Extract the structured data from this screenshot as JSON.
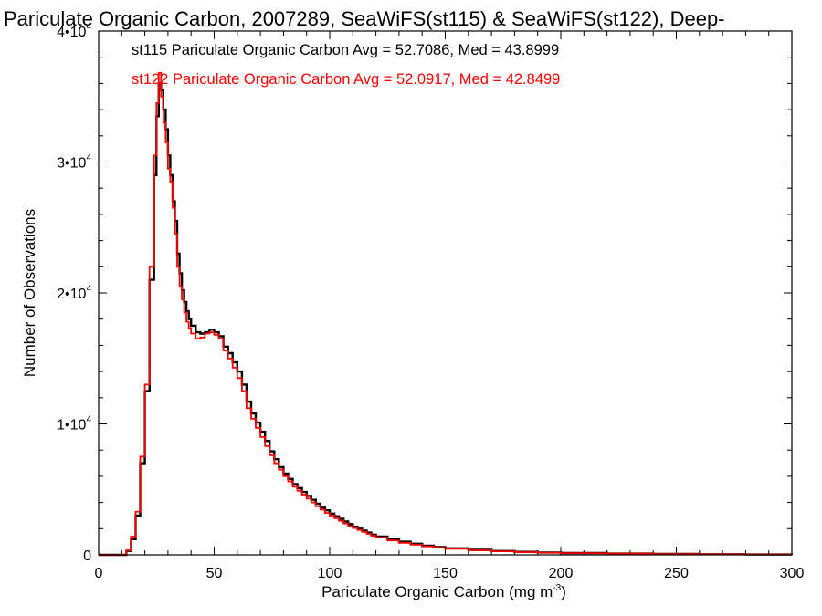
{
  "chart_data": {
    "type": "line",
    "title": "Pariculate Organic Carbon, 2007289, SeaWiFS(st115) & SeaWiFS(st122), Deep-",
    "xlabel": "Pariculate Organic Carbon (mg m",
    "xlabel_exp": "-3",
    "xlabel_close": ")",
    "ylabel": "Number of Observations",
    "xlim": [
      0,
      300
    ],
    "ylim": [
      0,
      40000
    ],
    "grid": false,
    "x_ticks": [
      0,
      50,
      100,
      150,
      200,
      250,
      300
    ],
    "x_tick_labels": [
      "0",
      "50",
      "100",
      "150",
      "200",
      "250",
      "300"
    ],
    "y_ticks": [
      {
        "value": 0,
        "mantissa": "0",
        "exp": ""
      },
      {
        "value": 10000,
        "mantissa": "1•10",
        "exp": "4"
      },
      {
        "value": 20000,
        "mantissa": "2•10",
        "exp": "4"
      },
      {
        "value": 30000,
        "mantissa": "3•10",
        "exp": "4"
      },
      {
        "value": 40000,
        "mantissa": "4•10",
        "exp": "4"
      }
    ],
    "legend_placement": "top-left",
    "series": [
      {
        "name": "st115",
        "label": "st115 Pariculate Organic Carbon Avg = 52.7086, Med = 43.8999",
        "color": "#000000",
        "points": [
          [
            0,
            0
          ],
          [
            10,
            0
          ],
          [
            12,
            300
          ],
          [
            14,
            1200
          ],
          [
            16,
            3000
          ],
          [
            18,
            7000
          ],
          [
            20,
            12500
          ],
          [
            22,
            21000
          ],
          [
            24,
            29000
          ],
          [
            25,
            33500
          ],
          [
            26,
            36000
          ],
          [
            27,
            35500
          ],
          [
            28,
            34000
          ],
          [
            29,
            32500
          ],
          [
            30,
            30500
          ],
          [
            31,
            29000
          ],
          [
            32,
            27000
          ],
          [
            33,
            25500
          ],
          [
            34,
            23000
          ],
          [
            35,
            21500
          ],
          [
            36,
            20200
          ],
          [
            37,
            19300
          ],
          [
            38,
            18600
          ],
          [
            39,
            18000
          ],
          [
            40,
            17500
          ],
          [
            42,
            17000
          ],
          [
            44,
            16900
          ],
          [
            46,
            17000
          ],
          [
            48,
            17200
          ],
          [
            50,
            17000
          ],
          [
            52,
            16700
          ],
          [
            54,
            15900
          ],
          [
            56,
            15400
          ],
          [
            58,
            14700
          ],
          [
            60,
            14000
          ],
          [
            62,
            13000
          ],
          [
            64,
            11700
          ],
          [
            66,
            10800
          ],
          [
            68,
            10100
          ],
          [
            70,
            9400
          ],
          [
            72,
            8700
          ],
          [
            74,
            7900
          ],
          [
            76,
            7300
          ],
          [
            78,
            6700
          ],
          [
            80,
            6200
          ],
          [
            82,
            5800
          ],
          [
            84,
            5400
          ],
          [
            86,
            5100
          ],
          [
            88,
            4800
          ],
          [
            90,
            4500
          ],
          [
            92,
            4200
          ],
          [
            94,
            3900
          ],
          [
            96,
            3600
          ],
          [
            98,
            3400
          ],
          [
            100,
            3150
          ],
          [
            102,
            2950
          ],
          [
            104,
            2750
          ],
          [
            106,
            2550
          ],
          [
            108,
            2350
          ],
          [
            110,
            2150
          ],
          [
            112,
            2000
          ],
          [
            114,
            1850
          ],
          [
            116,
            1700
          ],
          [
            118,
            1550
          ],
          [
            120,
            1400
          ],
          [
            125,
            1200
          ],
          [
            130,
            1000
          ],
          [
            135,
            850
          ],
          [
            140,
            700
          ],
          [
            145,
            600
          ],
          [
            150,
            500
          ],
          [
            160,
            380
          ],
          [
            170,
            290
          ],
          [
            180,
            230
          ],
          [
            190,
            180
          ],
          [
            200,
            140
          ],
          [
            220,
            100
          ],
          [
            240,
            70
          ],
          [
            260,
            50
          ],
          [
            280,
            30
          ],
          [
            300,
            20
          ]
        ]
      },
      {
        "name": "st122",
        "label": "st122 Pariculate Organic Carbon Avg = 52.0917, Med = 42.8499",
        "color": "#ff0000",
        "points": [
          [
            0,
            0
          ],
          [
            10,
            0
          ],
          [
            12,
            350
          ],
          [
            14,
            1400
          ],
          [
            16,
            3300
          ],
          [
            18,
            7500
          ],
          [
            20,
            13000
          ],
          [
            22,
            22000
          ],
          [
            24,
            30500
          ],
          [
            25,
            34500
          ],
          [
            26,
            36800
          ],
          [
            27,
            35000
          ],
          [
            28,
            33000
          ],
          [
            29,
            31500
          ],
          [
            30,
            29500
          ],
          [
            31,
            28500
          ],
          [
            32,
            26500
          ],
          [
            33,
            24500
          ],
          [
            34,
            22000
          ],
          [
            35,
            20500
          ],
          [
            36,
            19500
          ],
          [
            37,
            18500
          ],
          [
            38,
            17800
          ],
          [
            39,
            17300
          ],
          [
            40,
            16900
          ],
          [
            42,
            16500
          ],
          [
            44,
            16600
          ],
          [
            46,
            16900
          ],
          [
            48,
            17000
          ],
          [
            50,
            16800
          ],
          [
            52,
            16500
          ],
          [
            54,
            15600
          ],
          [
            56,
            15000
          ],
          [
            58,
            14300
          ],
          [
            60,
            13500
          ],
          [
            62,
            12500
          ],
          [
            64,
            11200
          ],
          [
            66,
            10400
          ],
          [
            68,
            9700
          ],
          [
            70,
            9000
          ],
          [
            72,
            8300
          ],
          [
            74,
            7600
          ],
          [
            76,
            7000
          ],
          [
            78,
            6500
          ],
          [
            80,
            6000
          ],
          [
            82,
            5600
          ],
          [
            84,
            5200
          ],
          [
            86,
            4900
          ],
          [
            88,
            4600
          ],
          [
            90,
            4300
          ],
          [
            92,
            4000
          ],
          [
            94,
            3700
          ],
          [
            96,
            3450
          ],
          [
            98,
            3200
          ],
          [
            100,
            3000
          ],
          [
            102,
            2800
          ],
          [
            104,
            2600
          ],
          [
            106,
            2400
          ],
          [
            108,
            2200
          ],
          [
            110,
            2050
          ],
          [
            112,
            1900
          ],
          [
            114,
            1750
          ],
          [
            116,
            1600
          ],
          [
            118,
            1450
          ],
          [
            120,
            1320
          ],
          [
            125,
            1100
          ],
          [
            130,
            920
          ],
          [
            135,
            780
          ],
          [
            140,
            650
          ],
          [
            145,
            550
          ],
          [
            150,
            460
          ],
          [
            160,
            350
          ],
          [
            170,
            270
          ],
          [
            180,
            210
          ],
          [
            190,
            170
          ],
          [
            200,
            130
          ],
          [
            220,
            90
          ],
          [
            240,
            60
          ],
          [
            260,
            45
          ],
          [
            280,
            28
          ],
          [
            300,
            18
          ]
        ]
      }
    ]
  }
}
